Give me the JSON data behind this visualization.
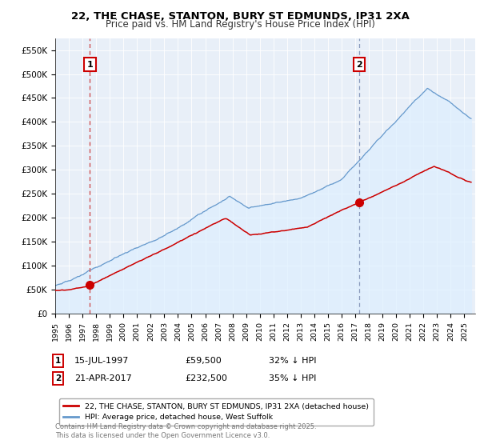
{
  "title_line1": "22, THE CHASE, STANTON, BURY ST EDMUNDS, IP31 2XA",
  "title_line2": "Price paid vs. HM Land Registry's House Price Index (HPI)",
  "legend_label_red": "22, THE CHASE, STANTON, BURY ST EDMUNDS, IP31 2XA (detached house)",
  "legend_label_blue": "HPI: Average price, detached house, West Suffolk",
  "annotation1_date": "15-JUL-1997",
  "annotation1_price": "£59,500",
  "annotation1_hpi": "32% ↓ HPI",
  "annotation2_date": "21-APR-2017",
  "annotation2_price": "£232,500",
  "annotation2_hpi": "35% ↓ HPI",
  "copyright_text": "Contains HM Land Registry data © Crown copyright and database right 2025.\nThis data is licensed under the Open Government Licence v3.0.",
  "ylim": [
    0,
    575000
  ],
  "yticks": [
    0,
    50000,
    100000,
    150000,
    200000,
    250000,
    300000,
    350000,
    400000,
    450000,
    500000,
    550000
  ],
  "ytick_labels": [
    "£0",
    "£50K",
    "£100K",
    "£150K",
    "£200K",
    "£250K",
    "£300K",
    "£350K",
    "£400K",
    "£450K",
    "£500K",
    "£550K"
  ],
  "red_color": "#cc0000",
  "blue_color": "#6699cc",
  "blue_fill_color": "#ddeeff",
  "dashed_line1_color": "#cc4444",
  "dashed_line2_color": "#8899bb",
  "plot_bg_color": "#e8eff8",
  "grid_color": "#ffffff",
  "marker1_year": 1997.54,
  "marker1_price": 59500,
  "marker2_year": 2017.31,
  "marker2_price": 232500,
  "label1_box_color": "#cc0000",
  "label2_box_color": "#cc0000"
}
